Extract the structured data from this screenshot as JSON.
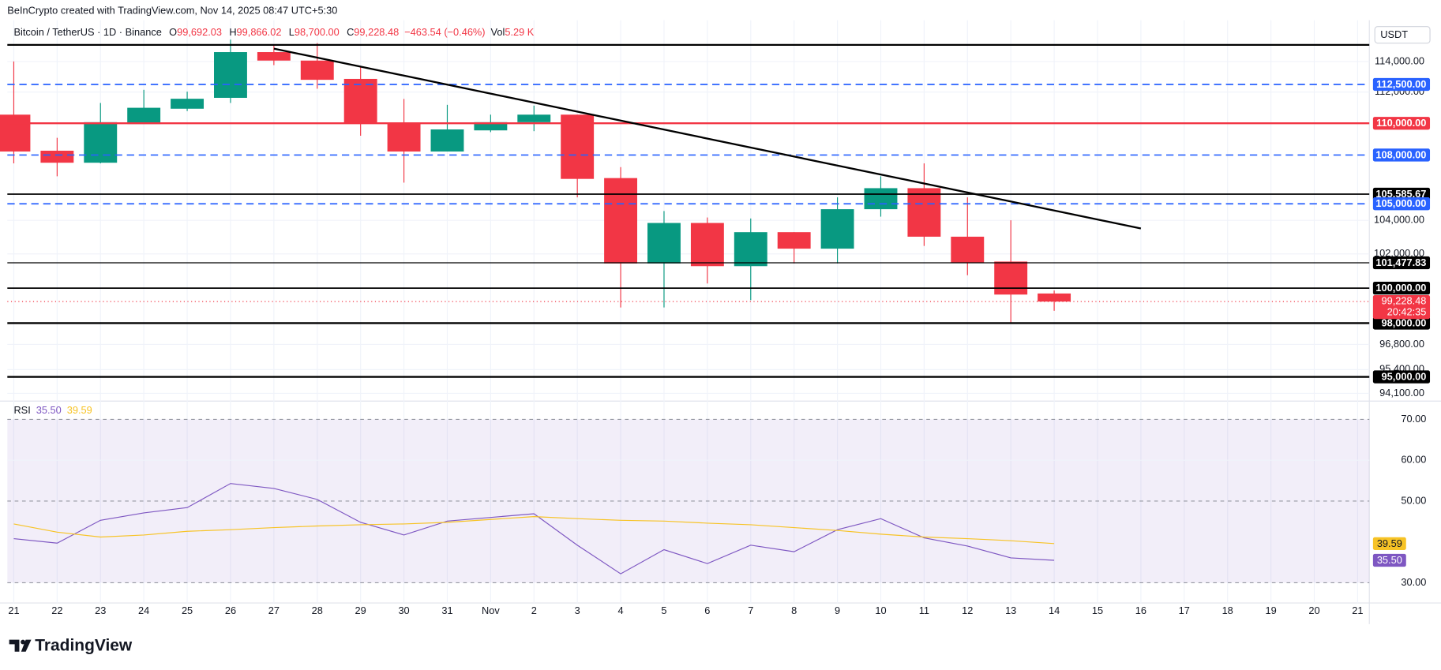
{
  "header": "BeInCrypto created with TradingView.com, Nov 14, 2025 08:47 UTC+5:30",
  "footer": "TradingView",
  "chart_data": [
    {
      "type": "candlestick",
      "title": "Bitcoin / TetherUS · 1D · Binance",
      "ohlc_legend": [
        {
          "label": "O",
          "value": "99,692.03"
        },
        {
          "label": "H",
          "value": "99,866.02"
        },
        {
          "label": "L",
          "value": "98,700.00"
        },
        {
          "label": "C",
          "value": "99,228.48"
        }
      ],
      "change": "−463.54 (−0.46%)",
      "volume_label": "Vol",
      "volume": "5.29 K",
      "currency": "USDT",
      "categories": [
        "21",
        "22",
        "23",
        "24",
        "25",
        "26",
        "27",
        "28",
        "29",
        "30",
        "31",
        "Nov",
        "2",
        "3",
        "4",
        "5",
        "6",
        "7",
        "8",
        "9",
        "10",
        "11",
        "12",
        "13",
        "14",
        "15",
        "16",
        "17",
        "18",
        "19",
        "20",
        "21"
      ],
      "open": [
        110550,
        108270,
        107520,
        109950,
        110930,
        111630,
        114620,
        114060,
        112860,
        109960,
        108220,
        109550,
        110070,
        110550,
        106570,
        101440,
        103840,
        101280,
        103290,
        102310,
        104670,
        105950,
        103020,
        101550,
        99692.03,
        null,
        null,
        null,
        null,
        null,
        null,
        null
      ],
      "high": [
        114000,
        109080,
        111300,
        112150,
        112030,
        115450,
        115040,
        115220,
        113670,
        111560,
        111180,
        110550,
        111130,
        110550,
        107250,
        104560,
        104170,
        104110,
        103290,
        105390,
        106680,
        107480,
        105390,
        104000,
        99866.02,
        null,
        null,
        null,
        null,
        null,
        null,
        null
      ],
      "low": [
        107480,
        106680,
        107480,
        109950,
        110780,
        111300,
        113760,
        112220,
        109210,
        106290,
        108220,
        109440,
        109500,
        105390,
        98890,
        98890,
        100270,
        99310,
        101440,
        101440,
        104220,
        102470,
        100750,
        98000,
        98700,
        null,
        null,
        null,
        null,
        null,
        null,
        null
      ],
      "close": [
        108220,
        107520,
        110070,
        110990,
        111570,
        114620,
        114060,
        112800,
        110020,
        108220,
        109610,
        110070,
        110550,
        106520,
        101440,
        103840,
        101280,
        103290,
        102310,
        104670,
        105950,
        103020,
        101500,
        99630,
        99228.48,
        null,
        null,
        null,
        null,
        null,
        null,
        null
      ],
      "up_color": "#089981",
      "down_color": "#f23645",
      "log": true,
      "ylim": [
        93780,
        116260
      ],
      "yticks": [
        {
          "value": 94100,
          "label": "94,100.00"
        },
        {
          "value": 95400,
          "label": "95,400.00"
        },
        {
          "value": 96800,
          "label": "96,800.00"
        },
        {
          "value": 102000,
          "label": "102,000.00"
        },
        {
          "value": 104000,
          "label": "104,000.00"
        },
        {
          "value": 112000,
          "label": "112,000.00"
        },
        {
          "value": 114000,
          "label": "114,000.00"
        }
      ],
      "grid": true,
      "levels": [
        {
          "value": 115100,
          "color": "#000000",
          "dashed": false,
          "width": 2
        },
        {
          "value": 112500,
          "label": "112,500.00",
          "color": "#2962ff",
          "dashed": true,
          "width": 1.5
        },
        {
          "value": 110000,
          "label": "110,000.00",
          "color": "#f23645",
          "dashed": false,
          "width": 2
        },
        {
          "value": 108000,
          "label": "108,000.00",
          "color": "#2962ff",
          "dashed": true,
          "width": 1.5
        },
        {
          "value": 105585.67,
          "label": "105,585.67",
          "color": "#000000",
          "dashed": false,
          "width": 1.5
        },
        {
          "value": 105000,
          "label": "105,000.00",
          "color": "#2962ff",
          "dashed": true,
          "width": 1.5
        },
        {
          "value": 101477.83,
          "label": "101,477.83",
          "color": "#000000",
          "dashed": false,
          "width": 1
        },
        {
          "value": 100000,
          "label": "100,000.00",
          "color": "#000000",
          "dashed": false,
          "width": 1.5
        },
        {
          "value": 98000,
          "label": "98,000.00",
          "color": "#000000",
          "dashed": false,
          "width": 2
        },
        {
          "value": 95000,
          "label": "95,000.00",
          "color": "#000000",
          "dashed": false,
          "width": 2
        }
      ],
      "current": {
        "value": 99228.48,
        "label": "99,228.48",
        "countdown": "20:42:35",
        "color": "#f23645"
      },
      "trendline": {
        "from": {
          "category": 6,
          "value": 114850
        },
        "to": {
          "category": 26,
          "value": 103510
        },
        "color": "#000000"
      }
    },
    {
      "type": "line",
      "title": "RSI",
      "series": [
        {
          "color": "#7e57c2",
          "values": [
            40.8,
            39.7,
            45.3,
            47.1,
            48.4,
            54.3,
            53.1,
            50.4,
            44.8,
            41.7,
            45.1,
            46.0,
            46.9,
            39.2,
            32.2,
            38.1,
            34.7,
            39.2,
            37.6,
            43.0,
            45.7,
            41.0,
            39.0,
            36.1,
            35.5,
            null,
            null,
            null,
            null,
            null,
            null,
            null
          ],
          "value_labels": [
            null,
            null,
            null,
            null,
            null,
            null,
            null,
            null,
            null,
            null,
            null,
            null,
            null,
            null,
            null,
            null,
            null,
            null,
            null,
            null,
            null,
            null,
            null,
            null,
            "35.50",
            null,
            null,
            null,
            null,
            null,
            null,
            null
          ]
        },
        {
          "color": "#f7c325",
          "values": [
            44.4,
            42.4,
            41.2,
            41.7,
            42.6,
            43.0,
            43.5,
            43.9,
            44.2,
            44.4,
            44.8,
            45.5,
            46.2,
            45.7,
            45.3,
            45.1,
            44.6,
            44.2,
            43.5,
            42.8,
            41.9,
            41.2,
            40.8,
            40.3,
            39.59,
            null,
            null,
            null,
            null,
            null,
            null,
            null
          ],
          "value_labels": [
            null,
            null,
            null,
            null,
            null,
            null,
            null,
            null,
            null,
            null,
            null,
            null,
            null,
            null,
            null,
            null,
            null,
            null,
            null,
            null,
            null,
            null,
            null,
            null,
            "39.59",
            null,
            null,
            null,
            null,
            null,
            null,
            null
          ]
        }
      ],
      "band": [
        30,
        70
      ],
      "band_color": "#7e57c2",
      "ylim": [
        25.5,
        73.8
      ],
      "yticks": [
        {
          "value": 30,
          "label": "30.00",
          "dashed": true
        },
        {
          "value": 50,
          "label": "50.00",
          "dashed": true
        },
        {
          "value": 60,
          "label": "60.00",
          "dashed": false
        },
        {
          "value": 70,
          "label": "70.00",
          "dashed": true
        }
      ]
    }
  ]
}
